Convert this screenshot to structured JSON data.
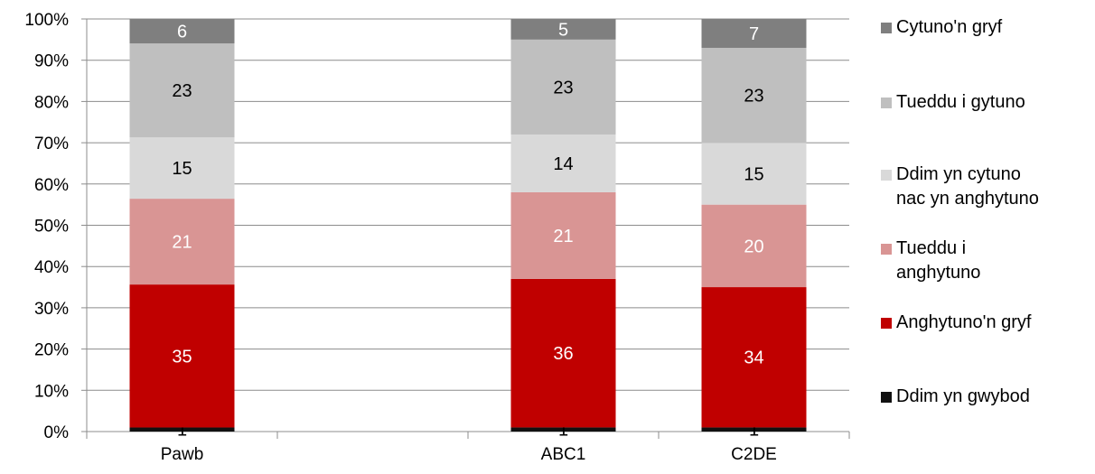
{
  "chart_data": {
    "type": "bar",
    "stacked": true,
    "categories": [
      "Pawb",
      "",
      "ABC1",
      "C2DE"
    ],
    "ylim": [
      0,
      100
    ],
    "yticks": [
      "0%",
      "10%",
      "20%",
      "30%",
      "40%",
      "50%",
      "60%",
      "70%",
      "80%",
      "90%",
      "100%"
    ],
    "grid": true,
    "legend_position": "right",
    "series": [
      {
        "name": "Ddim yn gwybod",
        "color": "#111111",
        "label_color": "#000000",
        "values": [
          1,
          null,
          1,
          1
        ]
      },
      {
        "name": "Anghytuno'n gryf",
        "color": "#c00000",
        "label_color": "#ffffff",
        "values": [
          35,
          null,
          36,
          34
        ]
      },
      {
        "name": "Tueddu i anghytuno",
        "color": "#d99594",
        "label_color": "#ffffff",
        "values": [
          21,
          null,
          21,
          20
        ]
      },
      {
        "name": "Ddim yn cytuno nac yn anghytuno",
        "color": "#d9d9d9",
        "label_color": "#000000",
        "values": [
          15,
          null,
          14,
          15
        ]
      },
      {
        "name": "Tueddu i gytuno",
        "color": "#bfbfbf",
        "label_color": "#000000",
        "values": [
          23,
          null,
          23,
          23
        ]
      },
      {
        "name": "Cytuno'n gryf",
        "color": "#7f7f7f",
        "label_color": "#ffffff",
        "values": [
          6,
          null,
          5,
          7
        ]
      }
    ]
  },
  "legend": [
    {
      "label": "Cytuno'n gryf",
      "color": "#7f7f7f"
    },
    {
      "label": "Tueddu i gytuno",
      "color": "#bfbfbf"
    },
    {
      "label": "Ddim yn cytuno\nnac yn anghytuno",
      "color": "#d9d9d9"
    },
    {
      "label": "Tueddu i\nanghytuno",
      "color": "#d99594"
    },
    {
      "label": "Anghytuno'n gryf",
      "color": "#c00000"
    },
    {
      "label": "Ddim yn gwybod",
      "color": "#111111"
    }
  ]
}
